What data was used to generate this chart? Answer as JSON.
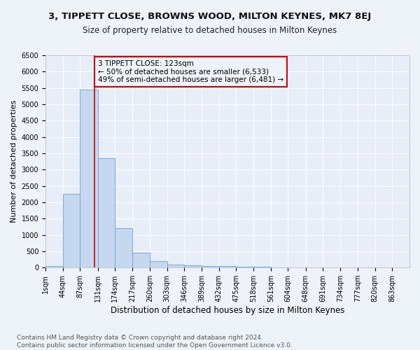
{
  "title": "3, TIPPETT CLOSE, BROWNS WOOD, MILTON KEYNES, MK7 8EJ",
  "subtitle": "Size of property relative to detached houses in Milton Keynes",
  "xlabel": "Distribution of detached houses by size in Milton Keynes",
  "ylabel": "Number of detached properties",
  "bin_edges": [
    1,
    44,
    87,
    131,
    174,
    217,
    260,
    303,
    346,
    389,
    432,
    475,
    518,
    561,
    604,
    648,
    691,
    734,
    777,
    820,
    863
  ],
  "bar_heights": [
    50,
    2250,
    5450,
    3350,
    1200,
    450,
    200,
    100,
    75,
    55,
    40,
    30,
    20,
    15,
    10,
    8,
    5,
    4,
    3,
    2
  ],
  "bar_color": "#c5d8ef",
  "bar_edge_color": "#6a9fd8",
  "vline_x": 123,
  "vline_color": "#cc0000",
  "annotation_text": "3 TIPPETT CLOSE: 123sqm\n← 50% of detached houses are smaller (6,533)\n49% of semi-detached houses are larger (6,481) →",
  "annotation_box_color": "#cc0000",
  "ylim": [
    0,
    6500
  ],
  "yticks": [
    0,
    500,
    1000,
    1500,
    2000,
    2500,
    3000,
    3500,
    4000,
    4500,
    5000,
    5500,
    6000,
    6500
  ],
  "footnote": "Contains HM Land Registry data © Crown copyright and database right 2024.\nContains public sector information licensed under the Open Government Licence v3.0.",
  "bg_color": "#eef2f9",
  "plot_bg_color": "#e8eef8",
  "grid_color": "#ffffff",
  "title_fontsize": 9.5,
  "subtitle_fontsize": 8.5,
  "xlabel_fontsize": 8.5,
  "ylabel_fontsize": 8,
  "tick_fontsize": 7,
  "annot_fontsize": 7.5,
  "footnote_fontsize": 6.5
}
